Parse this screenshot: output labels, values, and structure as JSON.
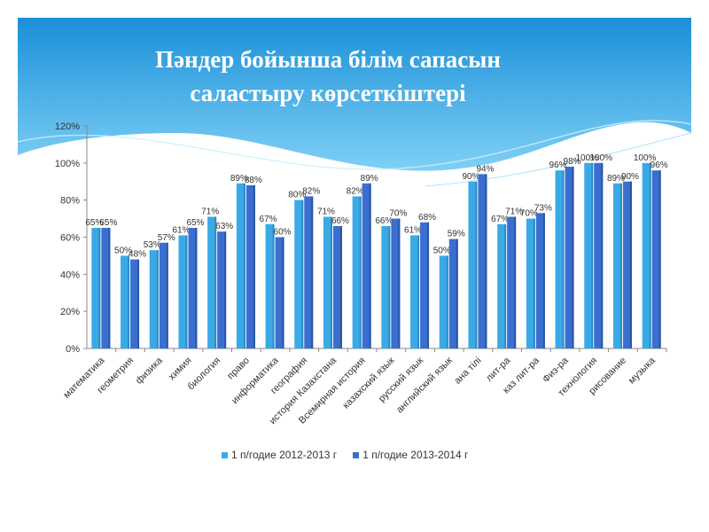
{
  "title_line1": "Пәндер бойынша білім сапасын",
  "title_line2": "саластыру көрсеткіштері",
  "colors": {
    "series1": "#3aaae6",
    "series2": "#3a6fd0",
    "banner_top": "#1a8fd8",
    "banner_bottom": "#6ec6f2"
  },
  "chart_data": {
    "type": "bar",
    "title": "Пәндер бойынша білім сапасын саластыру көрсеткіштері",
    "categories": [
      "математика",
      "геометрия",
      "физика",
      "химия",
      "биология",
      "право",
      "информатика",
      "география",
      "история Казахстана",
      "Всемирная история",
      "казахский язык",
      "русский язык",
      "английский язык",
      "ана тілі",
      "лит-ра",
      "каз лит-ра",
      "Физ-ра",
      "технология",
      "рисование",
      "музыка"
    ],
    "series": [
      {
        "name": "1 п/годие 2012-2013 г",
        "values": [
          65,
          50,
          53,
          61,
          71,
          89,
          67,
          80,
          71,
          82,
          66,
          61,
          50,
          90,
          67,
          70,
          96,
          100,
          89,
          100
        ]
      },
      {
        "name": "1 п/годие 2013-2014 г",
        "values": [
          65,
          48,
          57,
          65,
          63,
          88,
          60,
          82,
          66,
          89,
          70,
          68,
          59,
          94,
          71,
          73,
          98,
          100,
          90,
          96
        ]
      }
    ],
    "y_ticks": [
      "0%",
      "20%",
      "40%",
      "60%",
      "80%",
      "100%",
      "120%"
    ],
    "ylim": [
      0,
      120
    ],
    "grid": false,
    "legend_position": "bottom"
  }
}
